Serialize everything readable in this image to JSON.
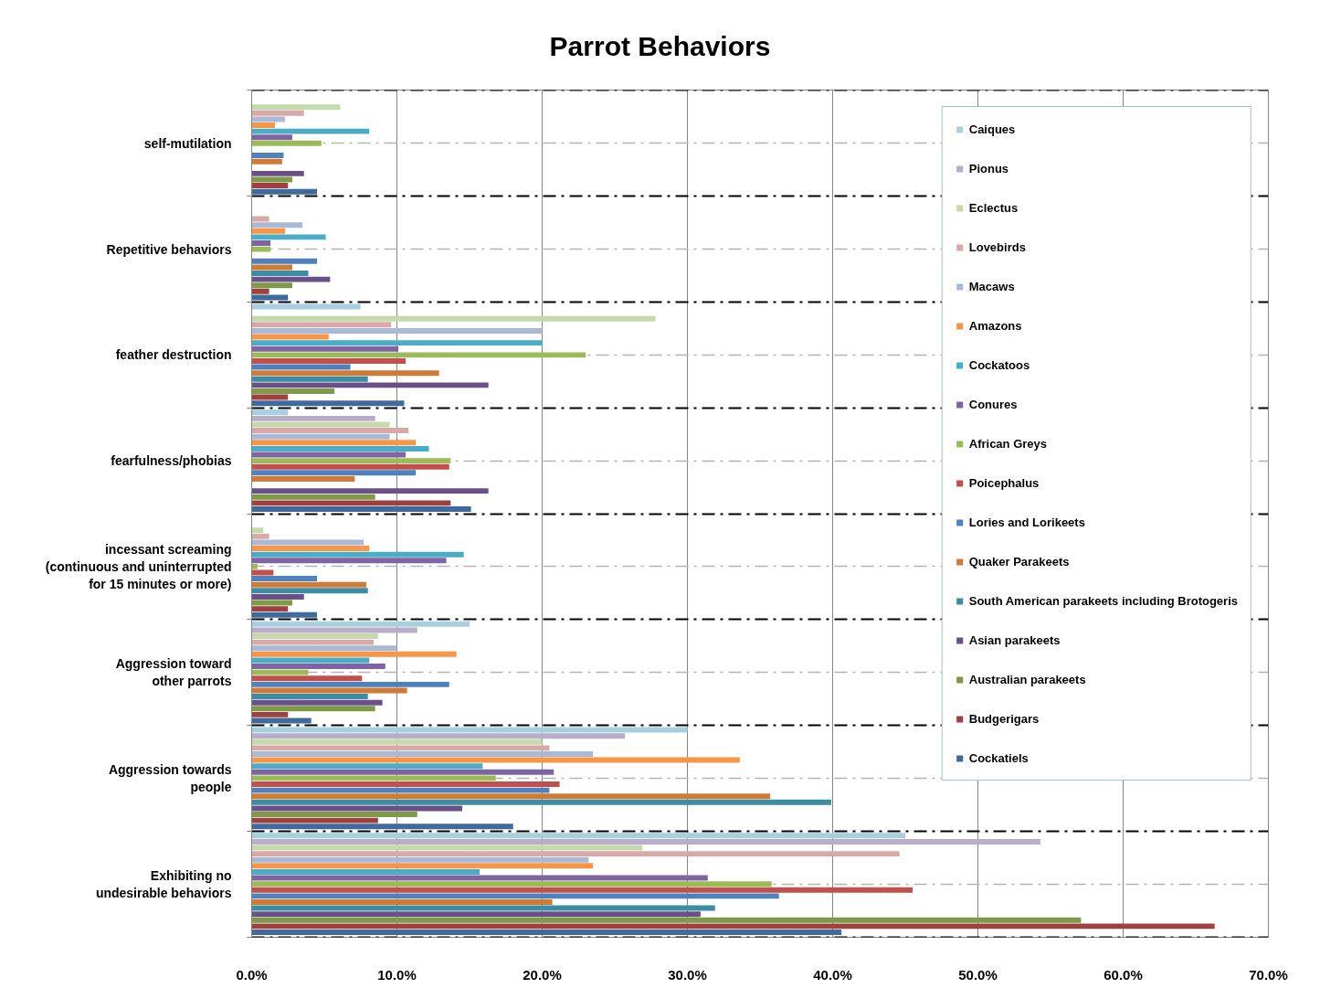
{
  "chart_data": {
    "type": "bar",
    "orientation": "horizontal",
    "title": "Parrot Behaviors",
    "categories": [
      "self-mutilation",
      "Repetitive behaviors",
      "feather destruction",
      "fearfulness/phobias",
      "incessant screaming\n(continuous and uninterrupted\nfor 15 minutes or more)",
      "Aggression toward\nother parrots",
      "Aggression towards\npeople",
      "Exhibiting no\nundesirable behaviors"
    ],
    "series": [
      {
        "name": "Caiques",
        "color": "#a8cfde",
        "values": [
          null,
          null,
          7.5,
          2.5,
          null,
          15.0,
          30.0,
          45.0
        ]
      },
      {
        "name": "Pionus",
        "color": "#b9adc9",
        "values": [
          null,
          null,
          null,
          8.5,
          null,
          11.4,
          25.7,
          54.3
        ]
      },
      {
        "name": "Eclectus",
        "color": "#c6d9ac",
        "values": [
          6.1,
          null,
          27.8,
          9.5,
          0.8,
          8.7,
          20.0,
          26.9
        ]
      },
      {
        "name": "Lovebirds",
        "color": "#d9a9a8",
        "values": [
          3.6,
          1.2,
          9.6,
          10.8,
          1.2,
          8.4,
          20.5,
          44.6
        ]
      },
      {
        "name": "Macaws",
        "color": "#a9b9d8",
        "values": [
          2.3,
          3.5,
          20.0,
          9.5,
          7.7,
          10.0,
          23.5,
          23.2
        ]
      },
      {
        "name": "Amazons",
        "color": "#f79646",
        "values": [
          1.6,
          2.3,
          5.3,
          11.3,
          8.1,
          14.1,
          33.6,
          23.5
        ]
      },
      {
        "name": "Cockatoos",
        "color": "#4bacc6",
        "values": [
          8.1,
          5.1,
          20.0,
          12.2,
          14.6,
          8.1,
          15.9,
          15.7
        ]
      },
      {
        "name": "Conures",
        "color": "#8064a2",
        "values": [
          2.8,
          1.3,
          10.1,
          10.6,
          13.4,
          9.2,
          20.8,
          31.4
        ]
      },
      {
        "name": "African Greys",
        "color": "#9bbb59",
        "values": [
          4.8,
          1.3,
          23.0,
          13.7,
          0.4,
          3.9,
          16.8,
          35.8
        ]
      },
      {
        "name": "Poicephalus",
        "color": "#c0504d",
        "values": [
          null,
          null,
          10.6,
          13.6,
          1.5,
          7.6,
          21.2,
          45.5
        ]
      },
      {
        "name": "Lories and Lorikeets",
        "color": "#4f81bd",
        "values": [
          2.2,
          4.5,
          6.8,
          11.3,
          4.5,
          13.6,
          20.5,
          36.3
        ]
      },
      {
        "name": "Quaker Parakeets",
        "color": "#cf7b37",
        "values": [
          2.1,
          2.8,
          12.9,
          7.1,
          7.9,
          10.7,
          35.7,
          20.7
        ]
      },
      {
        "name": "South American parakeets including Brotogeris",
        "color": "#3c8da3",
        "values": [
          null,
          3.9,
          8.0,
          null,
          8.0,
          8.0,
          39.9,
          31.9
        ]
      },
      {
        "name": "Asian parakeets",
        "color": "#695086",
        "values": [
          3.6,
          5.4,
          16.3,
          16.3,
          3.6,
          9.0,
          14.5,
          30.9
        ]
      },
      {
        "name": "Australian parakeets",
        "color": "#7e9a48",
        "values": [
          2.8,
          2.8,
          5.7,
          8.5,
          2.8,
          8.5,
          11.4,
          57.1
        ]
      },
      {
        "name": "Budgerigars",
        "color": "#9e413e",
        "values": [
          2.5,
          1.2,
          2.5,
          13.7,
          2.5,
          2.5,
          8.7,
          66.3
        ]
      },
      {
        "name": "Cockatiels",
        "color": "#416a9c",
        "values": [
          4.5,
          2.5,
          10.5,
          15.1,
          4.5,
          4.1,
          18.0,
          40.6
        ]
      }
    ],
    "xlim": [
      0,
      70
    ],
    "xticks": [
      {
        "value": 0,
        "label": "0.0%"
      },
      {
        "value": 10,
        "label": "10.0%"
      },
      {
        "value": 20,
        "label": "20.0%"
      },
      {
        "value": 30,
        "label": "30.0%"
      },
      {
        "value": 40,
        "label": "40.0%"
      },
      {
        "value": 50,
        "label": "50.0%"
      },
      {
        "value": 60,
        "label": "60.0%"
      },
      {
        "value": 70,
        "label": "70.0%"
      }
    ],
    "grid": true,
    "legend": "top right"
  }
}
